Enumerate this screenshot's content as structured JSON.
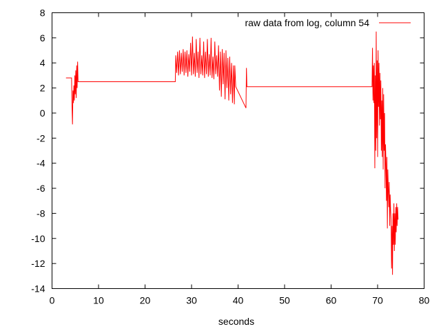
{
  "chart_data": {
    "type": "line",
    "title": "",
    "xlabel": "seconds",
    "ylabel": "",
    "xlim": [
      0,
      80
    ],
    "ylim": [
      -14,
      8
    ],
    "x_ticks": [
      0,
      10,
      20,
      30,
      40,
      50,
      60,
      70,
      80
    ],
    "y_ticks": [
      -14,
      -12,
      -10,
      -8,
      -6,
      -4,
      -2,
      0,
      2,
      4,
      6,
      8
    ],
    "grid": false,
    "legend_position": "top-right",
    "series": [
      {
        "name": "raw data from log, column 54",
        "color": "#ff0000",
        "x": [
          3.0,
          4.2,
          4.3,
          4.4,
          4.5,
          4.6,
          4.7,
          4.8,
          4.9,
          5.0,
          5.1,
          5.2,
          5.3,
          5.4,
          5.5,
          5.6,
          5.7,
          5.8,
          26.5,
          26.6,
          26.8,
          27.0,
          27.2,
          27.4,
          27.6,
          27.8,
          28.0,
          28.2,
          28.4,
          28.6,
          28.8,
          29.0,
          29.2,
          29.4,
          29.6,
          29.8,
          30.0,
          30.2,
          30.4,
          30.6,
          30.8,
          31.0,
          31.2,
          31.4,
          31.6,
          31.8,
          32.0,
          32.2,
          32.4,
          32.6,
          32.8,
          33.0,
          33.2,
          33.4,
          33.6,
          33.8,
          34.0,
          34.2,
          34.4,
          34.6,
          34.8,
          35.0,
          35.2,
          35.4,
          35.6,
          35.8,
          36.0,
          36.2,
          36.4,
          36.6,
          36.8,
          37.0,
          37.2,
          37.4,
          37.6,
          37.8,
          38.0,
          38.2,
          38.4,
          38.6,
          38.8,
          39.0,
          39.2,
          39.3,
          39.5,
          41.7,
          41.8,
          41.9,
          68.8,
          68.9,
          69.0,
          69.1,
          69.2,
          69.3,
          69.4,
          69.5,
          69.6,
          69.7,
          69.8,
          69.9,
          70.0,
          70.1,
          70.2,
          70.3,
          70.4,
          70.5,
          70.6,
          70.7,
          70.8,
          70.9,
          71.0,
          71.1,
          71.2,
          71.3,
          71.4,
          71.5,
          71.6,
          71.7,
          71.8,
          71.9,
          72.0,
          72.1,
          72.2,
          72.3,
          72.4,
          72.5,
          72.6,
          72.7,
          72.8,
          72.9,
          73.0,
          73.1,
          73.2,
          73.3,
          73.4,
          73.5,
          73.6,
          73.7,
          73.8,
          73.9,
          74.0,
          74.1,
          74.2,
          74.3,
          74.4
        ],
        "y": [
          2.8,
          2.8,
          0.5,
          -0.9,
          1.8,
          0.8,
          2.2,
          1.0,
          3.0,
          1.5,
          3.4,
          1.2,
          3.8,
          2.0,
          4.1,
          2.5,
          2.5,
          2.5,
          2.5,
          4.6,
          3.2,
          4.9,
          3.0,
          5.0,
          3.1,
          4.8,
          3.3,
          5.1,
          3.0,
          4.9,
          3.2,
          5.0,
          2.9,
          4.7,
          3.3,
          5.6,
          3.0,
          6.1,
          3.1,
          4.8,
          2.9,
          5.9,
          3.2,
          4.9,
          2.8,
          6.0,
          3.1,
          4.6,
          3.0,
          5.7,
          2.8,
          4.9,
          3.1,
          5.9,
          2.9,
          4.7,
          3.0,
          6.0,
          2.8,
          4.5,
          2.7,
          5.7,
          3.1,
          4.6,
          2.9,
          5.4,
          1.8,
          4.9,
          1.3,
          5.1,
          2.3,
          4.8,
          1.1,
          5.0,
          2.0,
          4.4,
          1.0,
          4.5,
          1.5,
          4.0,
          0.8,
          3.8,
          0.7,
          3.8,
          2.1,
          0.4,
          3.6,
          2.1,
          2.1,
          5.2,
          1.0,
          3.8,
          0.8,
          4.0,
          -4.4,
          3.0,
          -3.0,
          6.5,
          -2.0,
          4.2,
          -3.5,
          5.0,
          0.5,
          4.0,
          -1.0,
          3.2,
          -0.5,
          2.6,
          -3.0,
          1.0,
          -3.5,
          2.0,
          -4.5,
          1.5,
          -3.0,
          0.0,
          -6.0,
          -2.5,
          -4.0,
          -7.0,
          -3.5,
          -9.2,
          -4.5,
          -6.0,
          -7.5,
          -5.5,
          -9.0,
          -6.5,
          -7.8,
          -8.5,
          -12.4,
          -9.0,
          -12.9,
          -8.0,
          -10.5,
          -7.2,
          -11.0,
          -8.0,
          -10.5,
          -7.5,
          -9.5,
          -7.2,
          -9.0,
          -7.5,
          -8.5
        ]
      }
    ]
  }
}
